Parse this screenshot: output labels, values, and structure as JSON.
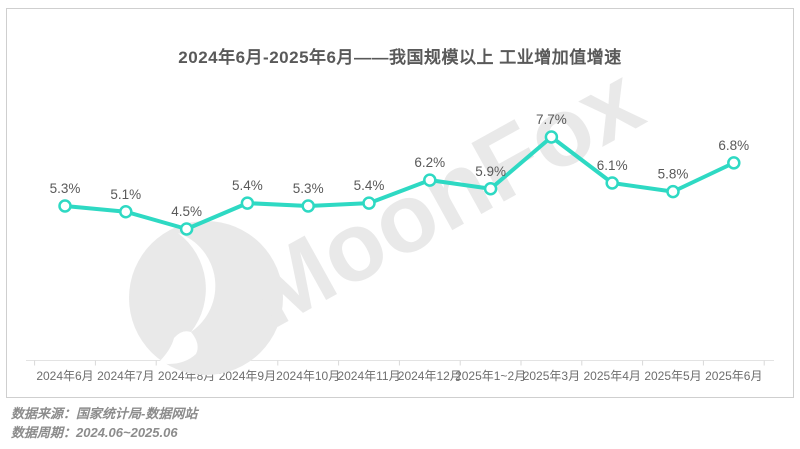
{
  "title": "2024年6月-2025年6月——我国规模以上 工业增加值增速",
  "watermark": {
    "text": "MoonFox",
    "icon": "moon-logo-icon"
  },
  "footer": {
    "source": "数据来源：国家统计局-数据网站",
    "period": "数据周期：2024.06~2025.06"
  },
  "colors": {
    "line": "#2ed9c3",
    "marker_fill": "#ffffff",
    "value_label": "#595959",
    "axis_label": "#6e6e6e",
    "axis_line": "#e3e3e3",
    "tick": "#d9d9d9",
    "border": "#cfcfcf",
    "watermark": "#e9e9e9",
    "footer_text": "#8c8c8c",
    "title_text": "#595959"
  },
  "chart_data": {
    "type": "line",
    "title": "2024年6月-2025年6月——我国规模以上 工业增加值增速",
    "categories": [
      "2024年6月",
      "2024年7月",
      "2024年8月",
      "2024年9月",
      "2024年10月",
      "2024年11月",
      "2024年12月",
      "2025年1~2月",
      "2025年3月",
      "2025年4月",
      "2025年5月",
      "2025年6月"
    ],
    "values": [
      5.3,
      5.1,
      4.5,
      5.4,
      5.3,
      5.4,
      6.2,
      5.9,
      7.7,
      6.1,
      5.8,
      6.8
    ],
    "labels": [
      "5.3%",
      "5.1%",
      "4.5%",
      "5.4%",
      "5.3%",
      "5.4%",
      "6.2%",
      "5.9%",
      "7.7%",
      "6.1%",
      "5.8%",
      "6.8%"
    ],
    "unit": "%",
    "xlabel": "",
    "ylabel": "",
    "ylim": [
      4,
      8.5
    ],
    "grid": false,
    "legend": false,
    "data_labels": true,
    "line_color": "#2ed9c3",
    "marker": "circle-white-fill"
  }
}
